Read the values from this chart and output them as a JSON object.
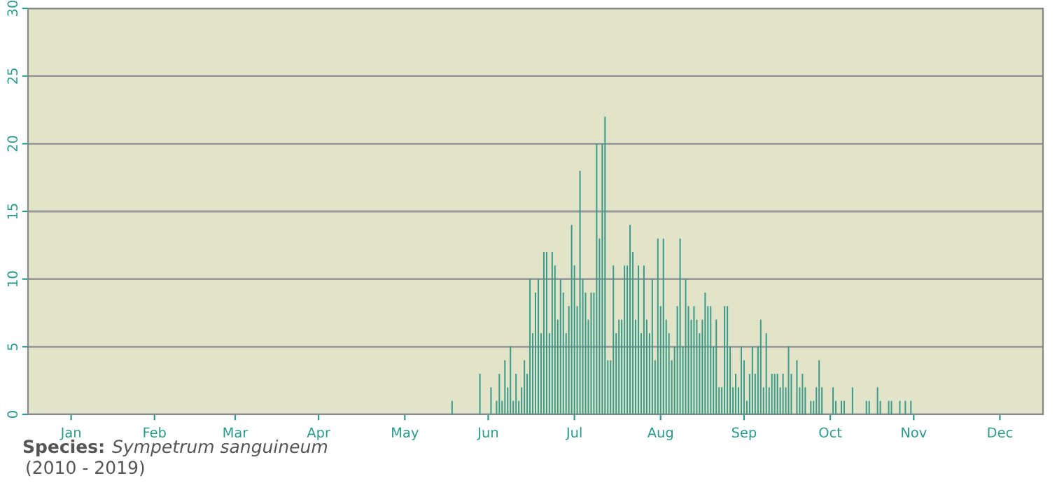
{
  "chart_data": {
    "type": "bar",
    "annotations": [
      "Species:",
      "Sympetrum sanguineum",
      "(2010 - 2019)"
    ],
    "categories": [
      null,
      null,
      null,
      null,
      null,
      null,
      null,
      null,
      null,
      null,
      null,
      null,
      null,
      null,
      null,
      "Jan",
      null,
      null,
      null,
      null,
      null,
      null,
      null,
      null,
      null,
      null,
      null,
      null,
      null,
      null,
      null,
      null,
      null,
      null,
      null,
      null,
      null,
      null,
      null,
      null,
      null,
      null,
      null,
      null,
      null,
      "Feb",
      null,
      null,
      null,
      null,
      null,
      null,
      null,
      null,
      null,
      null,
      null,
      null,
      null,
      null,
      null,
      null,
      null,
      null,
      null,
      null,
      null,
      null,
      null,
      null,
      null,
      null,
      null,
      null,
      "Mar",
      null,
      null,
      null,
      null,
      null,
      null,
      null,
      null,
      null,
      null,
      null,
      null,
      null,
      null,
      null,
      null,
      null,
      null,
      null,
      null,
      null,
      null,
      null,
      null,
      null,
      null,
      null,
      null,
      null,
      "Apr",
      null,
      null,
      null,
      null,
      null,
      null,
      null,
      null,
      null,
      null,
      null,
      null,
      null,
      null,
      null,
      null,
      null,
      null,
      null,
      null,
      null,
      null,
      null,
      null,
      null,
      null,
      null,
      null,
      null,
      null,
      "May",
      null,
      null,
      null,
      null,
      null,
      null,
      null,
      null,
      null,
      null,
      null,
      null,
      null,
      null,
      null,
      null,
      null,
      null,
      null,
      null,
      null,
      null,
      null,
      null,
      null,
      null,
      null,
      null,
      null,
      "Jun",
      null,
      null,
      null,
      null,
      null,
      null,
      null,
      null,
      null,
      null,
      null,
      null,
      null,
      null,
      null,
      null,
      null,
      null,
      null,
      null,
      null,
      null,
      null,
      null,
      null,
      null,
      null,
      null,
      null,
      null,
      "Jul",
      null,
      null,
      null,
      null,
      null,
      null,
      null,
      null,
      null,
      null,
      null,
      null,
      null,
      null,
      null,
      null,
      null,
      null,
      null,
      null,
      null,
      null,
      null,
      null,
      null,
      null,
      null,
      null,
      null,
      null,
      "Aug",
      null,
      null,
      null,
      null,
      null,
      null,
      null,
      null,
      null,
      null,
      null,
      null,
      null,
      null,
      null,
      null,
      null,
      null,
      null,
      null,
      null,
      null,
      null,
      null,
      null,
      null,
      null,
      null,
      null,
      "Sep",
      null,
      null,
      null,
      null,
      null,
      null,
      null,
      null,
      null,
      null,
      null,
      null,
      null,
      null,
      null,
      null,
      null,
      null,
      null,
      null,
      null,
      null,
      null,
      null,
      null,
      null,
      null,
      null,
      null,
      null,
      "Oct",
      null,
      null,
      null,
      null,
      null,
      null,
      null,
      null,
      null,
      null,
      null,
      null,
      null,
      null,
      null,
      null,
      null,
      null,
      null,
      null,
      null,
      null,
      null,
      null,
      null,
      null,
      null,
      null,
      null,
      "Nov",
      null,
      null,
      null,
      null,
      null,
      null,
      null,
      null,
      null,
      null,
      null,
      null,
      null,
      null,
      null,
      null,
      null,
      null,
      null,
      null,
      null,
      null,
      null,
      null,
      null,
      null,
      null,
      null,
      null,
      null,
      "Dec",
      null,
      null,
      null,
      null,
      null,
      null,
      null,
      null,
      null,
      null,
      null,
      null,
      null,
      null,
      null
    ],
    "values": [
      0,
      0,
      0,
      0,
      0,
      0,
      0,
      0,
      0,
      0,
      0,
      0,
      0,
      0,
      0,
      0,
      0,
      0,
      0,
      0,
      0,
      0,
      0,
      0,
      0,
      0,
      0,
      0,
      0,
      0,
      0,
      0,
      0,
      0,
      0,
      0,
      0,
      0,
      0,
      0,
      0,
      0,
      0,
      0,
      0,
      0,
      0,
      0,
      0,
      0,
      0,
      0,
      0,
      0,
      0,
      0,
      0,
      0,
      0,
      0,
      0,
      0,
      0,
      0,
      0,
      0,
      0,
      0,
      0,
      0,
      0,
      0,
      0,
      0,
      0,
      0,
      0,
      0,
      0,
      0,
      0,
      0,
      0,
      0,
      0,
      0,
      0,
      0,
      0,
      0,
      0,
      0,
      0,
      0,
      0,
      0,
      0,
      0,
      0,
      0,
      0,
      0,
      0,
      0,
      0,
      0,
      0,
      0,
      0,
      0,
      0,
      0,
      0,
      0,
      0,
      0,
      0,
      0,
      0,
      0,
      0,
      0,
      0,
      0,
      0,
      0,
      0,
      0,
      0,
      0,
      0,
      0,
      0,
      0,
      0,
      0,
      0,
      0,
      0,
      0,
      0,
      0,
      0,
      0,
      0,
      0,
      0,
      0,
      0,
      0,
      0,
      0,
      1,
      0,
      0,
      0,
      0,
      0,
      0,
      0,
      0,
      0,
      3,
      0,
      0,
      0,
      2,
      0,
      1,
      3,
      1,
      4,
      2,
      5,
      1,
      3,
      1,
      2,
      4,
      3,
      10,
      6,
      9,
      10,
      6,
      12,
      12,
      6,
      12,
      11,
      7,
      10,
      9,
      6,
      8,
      14,
      11,
      8,
      18,
      10,
      9,
      7,
      9,
      9,
      20,
      13,
      20,
      22,
      4,
      4,
      11,
      6,
      7,
      7,
      11,
      11,
      14,
      12,
      7,
      11,
      6,
      11,
      7,
      6,
      10,
      4,
      13,
      8,
      13,
      7,
      6,
      4,
      5,
      8,
      13,
      5,
      10,
      8,
      7,
      8,
      7,
      6,
      7,
      9,
      8,
      8,
      5,
      7,
      2,
      2,
      8,
      8,
      5,
      2,
      3,
      2,
      5,
      4,
      1,
      3,
      5,
      3,
      5,
      7,
      2,
      6,
      2,
      3,
      3,
      3,
      2,
      3,
      2,
      5,
      3,
      0,
      4,
      2,
      3,
      2,
      0,
      1,
      1,
      2,
      4,
      2,
      0,
      0,
      0,
      2,
      1,
      0,
      1,
      1,
      0,
      0,
      2,
      0,
      0,
      0,
      0,
      1,
      1,
      0,
      0,
      2,
      1,
      0,
      0,
      1,
      1,
      0,
      0,
      1,
      0,
      1,
      0,
      1,
      0,
      0,
      0,
      0,
      0,
      0,
      0,
      0,
      0,
      0,
      0,
      0,
      0,
      0,
      0,
      0,
      0,
      0,
      0,
      0,
      0,
      0,
      0,
      0,
      0,
      0,
      0,
      0,
      0,
      0,
      0,
      0,
      0,
      0,
      0,
      0,
      0,
      0,
      0,
      0,
      0,
      0,
      0,
      0,
      0,
      0,
      0
    ],
    "color": "#3a9a8a",
    "ylim": [
      0,
      30
    ],
    "yticks": [
      0,
      5,
      10,
      15,
      20,
      25,
      30
    ],
    "grid": "y",
    "legend": false
  }
}
